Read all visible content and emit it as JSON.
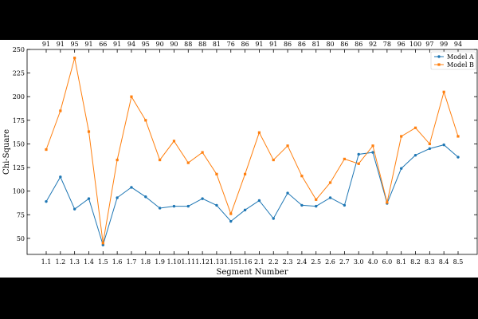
{
  "chart_data": {
    "type": "line",
    "xlabel": "Segment Number",
    "ylabel": "Chi-Square",
    "categories": [
      "1.1",
      "1.2",
      "1.3",
      "1.4",
      "1.5",
      "1.6",
      "1.7",
      "1.8",
      "1.9",
      "1.10",
      "1.11",
      "1.12",
      "1.13",
      "1.15",
      "1.16",
      "2.1",
      "2.2",
      "2.3",
      "2.4",
      "2.5",
      "2.6",
      "2.7",
      "3.0",
      "4.0",
      "6.0",
      "8.1",
      "8.2",
      "8.3",
      "8.4",
      "8.5"
    ],
    "top_labels": [
      "91",
      "91",
      "95",
      "91",
      "66",
      "91",
      "94",
      "95",
      "90",
      "90",
      "88",
      "88",
      "81",
      "76",
      "86",
      "91",
      "91",
      "86",
      "86",
      "81",
      "80",
      "86",
      "86",
      "92",
      "78",
      "96",
      "100",
      "97",
      "99",
      "94"
    ],
    "ylim": [
      33,
      250
    ],
    "yticks": [
      50,
      75,
      100,
      125,
      150,
      175,
      200,
      225,
      250
    ],
    "legend_position": "top-right",
    "series": [
      {
        "name": "Model A",
        "color": "#1f77b4",
        "marker": "circle",
        "values": [
          89,
          115,
          81,
          92,
          43,
          93,
          104,
          94,
          82,
          84,
          84,
          92,
          85,
          68,
          80,
          90,
          71,
          98,
          85,
          84,
          93,
          85,
          139,
          141,
          87,
          124,
          138,
          145,
          149,
          136
        ]
      },
      {
        "name": "Model B",
        "color": "#ff7f0e",
        "marker": "square",
        "values": [
          144,
          185,
          241,
          163,
          45,
          133,
          200,
          175,
          133,
          153,
          130,
          141,
          118,
          76,
          118,
          162,
          133,
          148,
          116,
          91,
          109,
          134,
          129,
          148,
          88,
          158,
          167,
          150,
          205,
          158
        ]
      }
    ]
  }
}
